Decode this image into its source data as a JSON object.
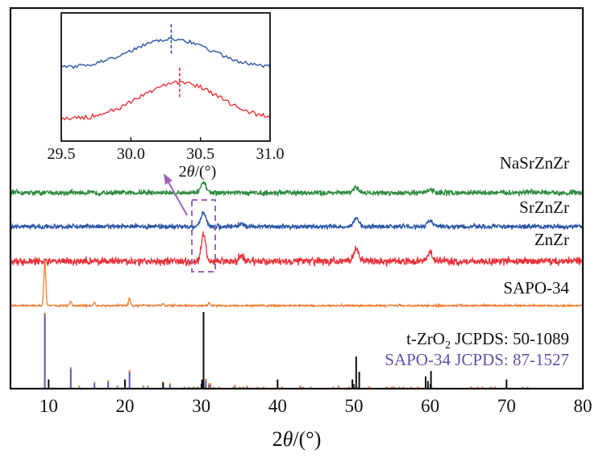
{
  "chart_data": {
    "type": "line",
    "title": "",
    "xlabel": "2θ/(°)",
    "ylabel": "",
    "xlim": [
      5,
      80
    ],
    "xticks": [
      "10",
      "20",
      "30",
      "40",
      "50",
      "60",
      "70",
      "80"
    ],
    "xtick_values": [
      10,
      20,
      30,
      40,
      50,
      60,
      70,
      80
    ],
    "grid": false,
    "legend": "labels placed at right of each trace",
    "series": [
      {
        "name": "NaSrZnZr",
        "color": "#2e8b3e",
        "peaks": [
          {
            "x": 30.3,
            "height": 0.55
          },
          {
            "x": 50.3,
            "height": 0.3
          },
          {
            "x": 60.0,
            "height": 0.18
          }
        ],
        "noise": 0.22
      },
      {
        "name": "SrZnZr",
        "color": "#2a55a8",
        "peaks": [
          {
            "x": 30.3,
            "height": 0.75
          },
          {
            "x": 35.2,
            "height": 0.15
          },
          {
            "x": 50.3,
            "height": 0.45
          },
          {
            "x": 60.0,
            "height": 0.35
          }
        ],
        "noise": 0.2
      },
      {
        "name": "ZnZr",
        "color": "#e8323a",
        "peaks": [
          {
            "x": 30.3,
            "height": 1.0
          },
          {
            "x": 35.2,
            "height": 0.2
          },
          {
            "x": 50.3,
            "height": 0.5
          },
          {
            "x": 60.0,
            "height": 0.38
          }
        ],
        "noise": 0.2
      },
      {
        "name": "SAPO-34",
        "color": "#f07f36",
        "peaks": [
          {
            "x": 9.5,
            "height": 1.0
          },
          {
            "x": 12.9,
            "height": 0.1
          },
          {
            "x": 16.0,
            "height": 0.06
          },
          {
            "x": 20.6,
            "height": 0.16
          },
          {
            "x": 25.0,
            "height": 0.05
          },
          {
            "x": 31.0,
            "height": 0.06
          }
        ],
        "noise": 0.03
      }
    ],
    "reference_patterns": [
      {
        "name": "t-ZrO2 JCPDS: 50-1089",
        "color": "#111111",
        "sticks": [
          {
            "x": 10.0,
            "intensity": 0.12
          },
          {
            "x": 20.0,
            "intensity": 0.12
          },
          {
            "x": 25.0,
            "intensity": 0.08
          },
          {
            "x": 30.1,
            "intensity": 0.12
          },
          {
            "x": 30.3,
            "intensity": 1.0
          },
          {
            "x": 40.0,
            "intensity": 0.12
          },
          {
            "x": 49.8,
            "intensity": 0.12
          },
          {
            "x": 50.3,
            "intensity": 0.42
          },
          {
            "x": 50.7,
            "intensity": 0.22
          },
          {
            "x": 59.4,
            "intensity": 0.16
          },
          {
            "x": 59.7,
            "intensity": 0.1
          },
          {
            "x": 60.1,
            "intensity": 0.23
          },
          {
            "x": 70.0,
            "intensity": 0.12
          }
        ]
      },
      {
        "name": "SAPO-34 JCPDS: 87-1527",
        "color": "#5a55a8",
        "sticks": [
          {
            "x": 9.5,
            "intensity": 0.98
          },
          {
            "x": 12.9,
            "intensity": 0.27
          },
          {
            "x": 14.0,
            "intensity": 0.03
          },
          {
            "x": 16.0,
            "intensity": 0.08
          },
          {
            "x": 17.8,
            "intensity": 0.1
          },
          {
            "x": 19.0,
            "intensity": 0.03
          },
          {
            "x": 20.6,
            "intensity": 0.23
          },
          {
            "x": 22.4,
            "intensity": 0.03
          },
          {
            "x": 23.0,
            "intensity": 0.03
          },
          {
            "x": 25.0,
            "intensity": 0.08
          },
          {
            "x": 25.9,
            "intensity": 0.06
          },
          {
            "x": 30.6,
            "intensity": 0.12
          },
          {
            "x": 31.0,
            "intensity": 0.06
          },
          {
            "x": 31.2,
            "intensity": 0.06
          },
          {
            "x": 34.4,
            "intensity": 0.04
          },
          {
            "x": 36.0,
            "intensity": 0.03
          },
          {
            "x": 43.0,
            "intensity": 0.03
          },
          {
            "x": 48.0,
            "intensity": 0.03
          },
          {
            "x": 52.0,
            "intensity": 0.02
          },
          {
            "x": 55.0,
            "intensity": 0.02
          }
        ]
      }
    ],
    "inset": {
      "xlim": [
        29.5,
        31.0
      ],
      "xticks": [
        "29.5",
        "30.0",
        "30.5",
        "31.0"
      ],
      "xtick_values": [
        29.5,
        30.0,
        30.5,
        31.0
      ],
      "xlabel": "2θ/(°)",
      "series": [
        {
          "name": "SrZnZr",
          "color": "#2a55a8",
          "peak_position": 30.29
        },
        {
          "name": "ZnZr",
          "color": "#e8323a",
          "peak_position": 30.35
        }
      ]
    },
    "annotations": [
      {
        "type": "dashed-box",
        "color": "#a061c0",
        "x_range": [
          29.0,
          31.5
        ],
        "note": "zoom region shown in inset"
      },
      {
        "type": "arrow",
        "color": "#a061c0",
        "from": "dashed-box",
        "to": "inset"
      }
    ]
  },
  "labels": {
    "x_axis_title_main": "2",
    "x_axis_title_theta": "θ",
    "x_axis_title_unit": "/(°)",
    "series": [
      "NaSrZnZr",
      "SrZnZr",
      "ZnZr",
      "SAPO-34"
    ],
    "ref_zro2_prefix": "t-ZrO",
    "ref_zro2_sub": "2",
    "ref_zro2_suffix": " JCPDS: 50-1089",
    "ref_sapo": "SAPO-34 JCPDS: 87-1527"
  }
}
